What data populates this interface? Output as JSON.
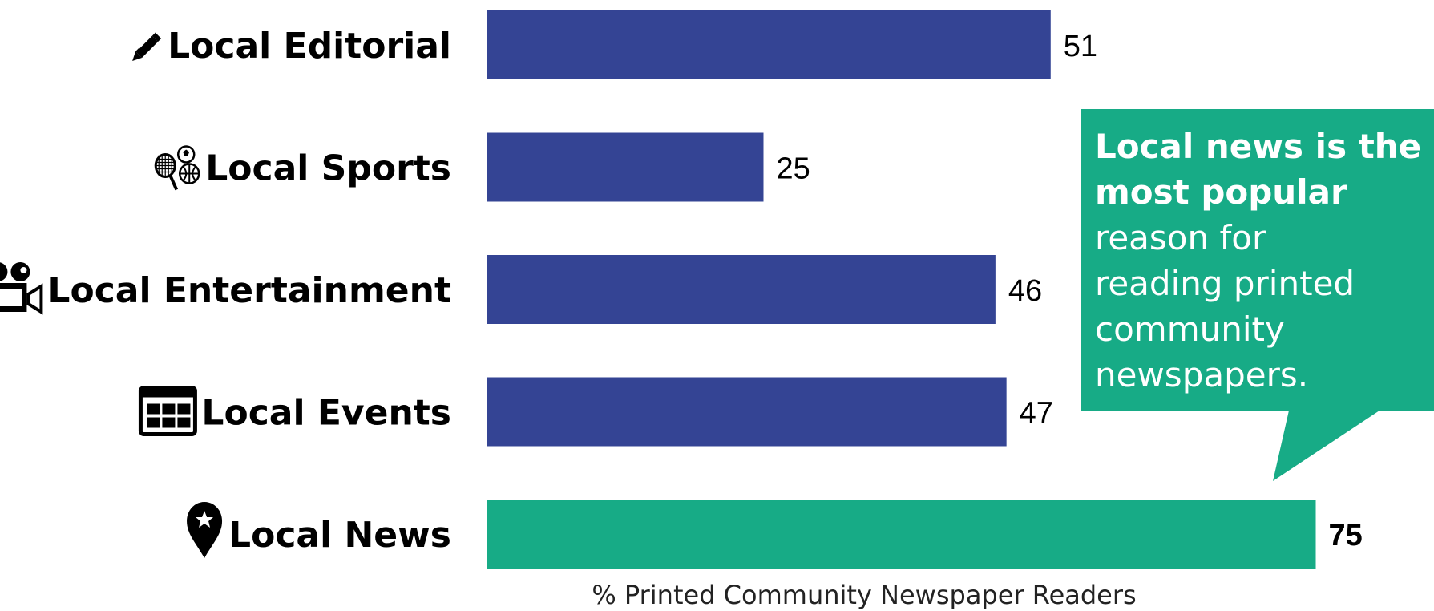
{
  "chart_data": {
    "type": "bar",
    "orientation": "horizontal",
    "categories": [
      "Local Editorial",
      "Local Sports",
      "Local Entertainment",
      "Local Events",
      "Local News"
    ],
    "icons": [
      "pencil-icon",
      "sports-balls-icon",
      "movie-camera-icon",
      "calendar-icon",
      "map-pin-star-icon"
    ],
    "values": [
      51,
      25,
      46,
      47,
      75
    ],
    "highlight_index": 4,
    "xlabel": "% Printed Community Newspaper Readers",
    "xlim": [
      0,
      100
    ],
    "grid": false,
    "bar_color": "#344494",
    "highlight_color": "#17AB86"
  },
  "callout": {
    "line1": "Local news is the",
    "line2": "most popular",
    "line3": "reason for",
    "line4": "reading printed",
    "line5": "community",
    "line6": "newspapers.",
    "color": "#17AB86"
  }
}
